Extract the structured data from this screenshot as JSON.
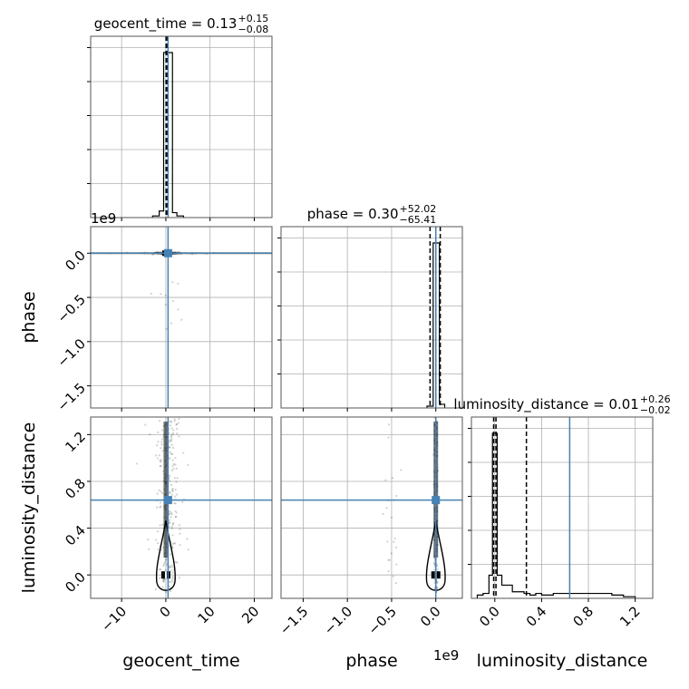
{
  "chart_data": {
    "type": "corner",
    "parameters": [
      "geocent_time",
      "phase",
      "luminosity_distance"
    ],
    "truths": {
      "geocent_time": 0.5,
      "phase": 0.0,
      "luminosity_distance": 0.64
    },
    "truth_color": "#4682b4",
    "titles": [
      {
        "param": "geocent_time",
        "main": "geocent_time = 0.13",
        "sup": "+0.15",
        "sub": "−0.08"
      },
      {
        "param": "phase",
        "main": "phase = 0.30",
        "sup": "+52.02",
        "sub": "−65.41"
      },
      {
        "param": "luminosity_distance",
        "main": "luminosity_distance = 0.01",
        "sup": "+0.26",
        "sub": "−0.02"
      }
    ],
    "axes": {
      "geocent_time": {
        "range": [
          -17,
          24
        ],
        "ticks": [
          -10,
          0,
          10,
          20
        ],
        "tick_labels": [
          "−10",
          "0",
          "10",
          "20"
        ],
        "label": "geocent_time"
      },
      "phase": {
        "range": [
          -1.75,
          0.3
        ],
        "ticks": [
          -1.5,
          -1.0,
          -0.5,
          0.0
        ],
        "tick_labels": [
          "−1.5",
          "−1.0",
          "−0.5",
          "0.0"
        ],
        "label": "phase",
        "offset_label": "1e9"
      },
      "luminosity_distance": {
        "range": [
          -0.2,
          1.35
        ],
        "ticks": [
          0.0,
          0.4,
          0.8,
          1.2
        ],
        "tick_labels": [
          "0.0",
          "0.4",
          "0.8",
          "1.2"
        ],
        "label": "luminosity_distance"
      }
    },
    "histograms": {
      "geocent_time": {
        "edges": [
          -3,
          -1.5,
          -0.5,
          0,
          0.5,
          1,
          1.5,
          2.5,
          4
        ],
        "counts": [
          1,
          4,
          100,
          100,
          100,
          100,
          3,
          1
        ],
        "quantiles": [
          0.05,
          0.13,
          0.28
        ]
      },
      "phase": {
        "edges": [
          -0.1,
          -0.03,
          0.0,
          0.04,
          0.1
        ],
        "counts": [
          1,
          90,
          90,
          2
        ],
        "quantiles": [
          -0.065,
          0.0,
          0.05
        ]
      },
      "luminosity_distance": {
        "edges": [
          -0.15,
          -0.1,
          -0.05,
          -0.02,
          0.02,
          0.06,
          0.1,
          0.15,
          0.2,
          0.25,
          0.3,
          0.35,
          0.4,
          0.5,
          0.6,
          0.7,
          0.8,
          0.9,
          1.0,
          1.05,
          1.1,
          1.2
        ],
        "counts": [
          2,
          3,
          14,
          100,
          14,
          8,
          8,
          4,
          4,
          3,
          2,
          3,
          2,
          3,
          3,
          3,
          3,
          3,
          2,
          2,
          1
        ],
        "quantiles": [
          -0.01,
          0.01,
          0.27
        ]
      }
    }
  }
}
